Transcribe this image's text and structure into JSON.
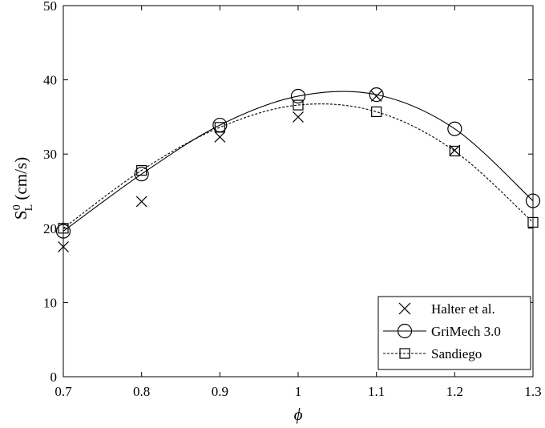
{
  "chart_data": {
    "type": "line",
    "xlabel": "ϕ",
    "ylabel_main": "S",
    "ylabel_sup": "0",
    "ylabel_sub": "L",
    "ylabel_unit": " (cm/s)",
    "xlim": [
      0.7,
      1.3
    ],
    "ylim": [
      0,
      50
    ],
    "xticks": [
      0.7,
      0.8,
      0.9,
      1.0,
      1.1,
      1.2,
      1.3
    ],
    "xtick_labels": [
      "0.7",
      "0.8",
      "0.9",
      "1",
      "1.1",
      "1.2",
      "1.3"
    ],
    "yticks": [
      0,
      10,
      20,
      30,
      40,
      50
    ],
    "ytick_labels": [
      "0",
      "10",
      "20",
      "30",
      "40",
      "50"
    ],
    "grid": false,
    "legend_position": "bottom-right",
    "series": [
      {
        "name": "Halter et al.",
        "marker": "x",
        "line": "none",
        "x": [
          0.7,
          0.8,
          0.9,
          1.0,
          1.1,
          1.2
        ],
        "y": [
          17.5,
          23.6,
          32.3,
          35.0,
          37.8,
          30.5
        ]
      },
      {
        "name": "GriMech 3.0",
        "marker": "circle",
        "line": "solid",
        "x": [
          0.7,
          0.8,
          0.9,
          1.0,
          1.1,
          1.2,
          1.3
        ],
        "y": [
          19.6,
          27.3,
          33.9,
          37.8,
          38.0,
          33.4,
          23.7
        ]
      },
      {
        "name": "Sandiego",
        "marker": "square",
        "line": "dashed",
        "x": [
          0.7,
          0.8,
          0.9,
          1.0,
          1.1,
          1.2,
          1.3
        ],
        "y": [
          20.0,
          27.8,
          33.6,
          36.6,
          35.7,
          30.4,
          20.8
        ]
      }
    ]
  }
}
